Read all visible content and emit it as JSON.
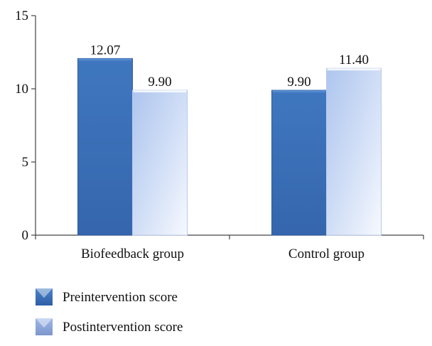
{
  "chart_data": {
    "type": "bar",
    "title": "",
    "xlabel": "",
    "ylabel": "",
    "categories": [
      "Biofeedback group",
      "Control group"
    ],
    "series": [
      {
        "name": "Preintervention score",
        "values": [
          12.07,
          9.9
        ],
        "labels": [
          "12.07",
          "9.90"
        ],
        "color": "#3a70b8"
      },
      {
        "name": "Postintervention score",
        "values": [
          9.9,
          11.4
        ],
        "labels": [
          "9.90",
          "11.40"
        ],
        "color": "#c3d4f2"
      }
    ],
    "ylim": [
      0,
      15
    ],
    "yticks": [
      0,
      5,
      10,
      15
    ],
    "grid": false,
    "legend": "bottom-left"
  }
}
